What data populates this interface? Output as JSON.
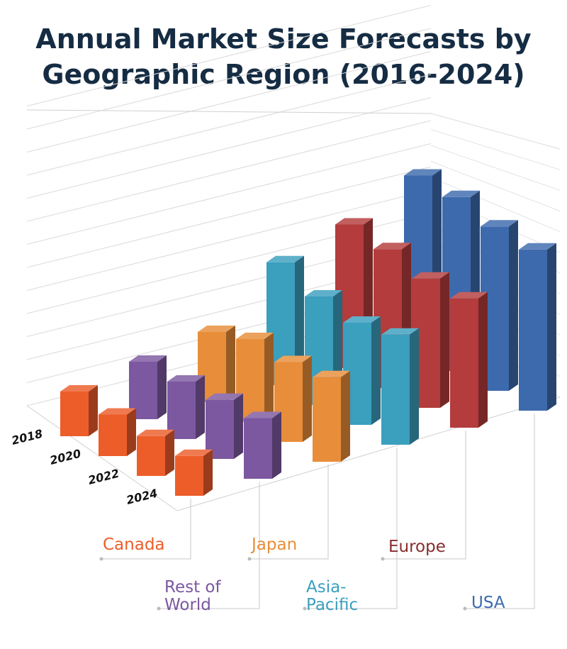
{
  "title_line1": "Annual Market Size Forecasts by",
  "title_line2": "Geographic Region (2016-2024)",
  "chart_data": {
    "type": "bar",
    "subtype": "3d-grouped-bar",
    "title": "Annual Market Size Forecasts by Geographic Region (2016-2024)",
    "years": [
      "2018",
      "2020",
      "2022",
      "2024"
    ],
    "regions": [
      "Canada",
      "Rest of World",
      "Japan",
      "Asia-Pacific",
      "Europe",
      "USA"
    ],
    "region_labels": [
      [
        "Canada"
      ],
      [
        "Rest of",
        "World"
      ],
      [
        "Japan"
      ],
      [
        "Asia-",
        "Pacific"
      ],
      [
        "Europe"
      ],
      [
        "USA"
      ]
    ],
    "series": [
      {
        "name": "Canada",
        "color": "#ed5d2a",
        "values": [
          2.8,
          2.6,
          2.5,
          2.5
        ]
      },
      {
        "name": "Rest of World",
        "color": "#7c58a0",
        "values": [
          3.6,
          3.6,
          3.7,
          3.8
        ]
      },
      {
        "name": "Japan",
        "color": "#e88d3a",
        "values": [
          4.4,
          5.2,
          5.0,
          5.3
        ]
      },
      {
        "name": "Asia-Pacific",
        "color": "#3b9fbe",
        "values": [
          7.7,
          6.8,
          6.4,
          6.9
        ]
      },
      {
        "name": "Europe",
        "color": "#b43c3c",
        "values": [
          9.0,
          8.7,
          8.1,
          8.1
        ]
      },
      {
        "name": "USA",
        "color": "#3d6aad",
        "values": [
          11.0,
          10.9,
          10.3,
          10.1
        ]
      }
    ],
    "grid": true,
    "axis_tick_labels_y": false
  }
}
